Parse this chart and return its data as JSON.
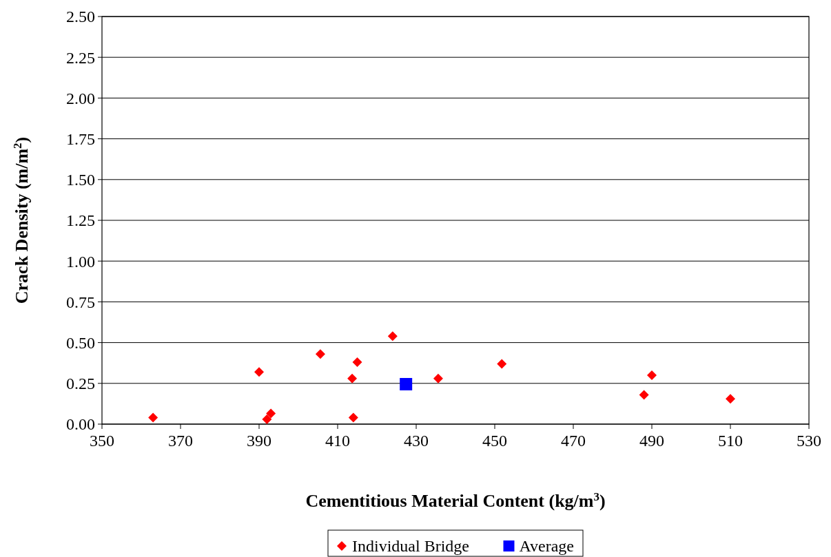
{
  "chart_data": {
    "type": "scatter",
    "xlabel": "Cementitious Material Content (kg/m$^{3}$)",
    "ylabel": "Crack Density (m/m$^{2}$)",
    "xlim": [
      350,
      530
    ],
    "xticks": [
      350,
      370,
      390,
      410,
      430,
      450,
      470,
      490,
      510,
      530
    ],
    "ylim": [
      0,
      2.5
    ],
    "yticks": [
      {
        "value": 0,
        "label": "0.00"
      },
      {
        "value": 0.25,
        "label": "0.25"
      },
      {
        "value": 0.5,
        "label": "0.50"
      },
      {
        "value": 0.75,
        "label": "0.75"
      },
      {
        "value": 1,
        "label": "1.00"
      },
      {
        "value": 1.25,
        "label": "1.25"
      },
      {
        "value": 1.5,
        "label": "1.50"
      },
      {
        "value": 1.75,
        "label": "1.75"
      },
      {
        "value": 2,
        "label": "2.00"
      },
      {
        "value": 2.25,
        "label": "2.25"
      },
      {
        "value": 2.5,
        "label": "2.50"
      }
    ],
    "grid": "y",
    "legend": "bottom",
    "series": [
      {
        "name": "Individual Bridge",
        "color": "#ff0000",
        "marker": "diamond",
        "x": [
          363,
          390,
          392,
          393,
          405.6,
          413.7,
          414,
          415,
          424,
          435.6,
          451.8,
          488,
          490,
          510
        ],
        "values": [
          0.04,
          0.32,
          0.03,
          0.065,
          0.43,
          0.28,
          0.04,
          0.38,
          0.54,
          0.28,
          0.37,
          0.18,
          0.3,
          0.155
        ]
      },
      {
        "name": "Average",
        "color": "#0000ff",
        "marker": "square",
        "x": [
          427.4
        ],
        "values": [
          0.245
        ]
      }
    ]
  }
}
